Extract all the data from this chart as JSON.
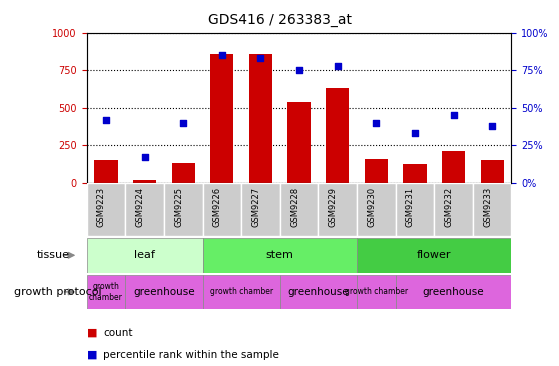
{
  "title": "GDS416 / 263383_at",
  "samples": [
    "GSM9223",
    "GSM9224",
    "GSM9225",
    "GSM9226",
    "GSM9227",
    "GSM9228",
    "GSM9229",
    "GSM9230",
    "GSM9231",
    "GSM9232",
    "GSM9233"
  ],
  "counts": [
    150,
    20,
    130,
    860,
    860,
    540,
    630,
    160,
    125,
    215,
    150
  ],
  "percentiles": [
    42,
    17,
    40,
    85,
    83,
    75,
    78,
    40,
    33,
    45,
    38
  ],
  "bar_color": "#cc0000",
  "dot_color": "#0000cc",
  "ylim_left": [
    0,
    1000
  ],
  "ylim_right": [
    0,
    100
  ],
  "yticks_left": [
    0,
    250,
    500,
    750,
    1000
  ],
  "yticks_right": [
    0,
    25,
    50,
    75,
    100
  ],
  "tissue_spans": [
    {
      "label": "leaf",
      "start": 0,
      "end": 3,
      "color": "#ccffcc"
    },
    {
      "label": "stem",
      "start": 3,
      "end": 7,
      "color": "#66ee66"
    },
    {
      "label": "flower",
      "start": 7,
      "end": 11,
      "color": "#44cc44"
    }
  ],
  "proto_spans": [
    {
      "label": "growth\nchamber",
      "start": 0,
      "end": 1,
      "color": "#dd66dd"
    },
    {
      "label": "greenhouse",
      "start": 1,
      "end": 3,
      "color": "#dd66dd"
    },
    {
      "label": "growth chamber",
      "start": 3,
      "end": 5,
      "color": "#dd66dd"
    },
    {
      "label": "greenhouse",
      "start": 5,
      "end": 7,
      "color": "#dd66dd"
    },
    {
      "label": "growth chamber",
      "start": 7,
      "end": 8,
      "color": "#dd66dd"
    },
    {
      "label": "greenhouse",
      "start": 8,
      "end": 11,
      "color": "#dd66dd"
    }
  ],
  "tissue_label": "tissue",
  "protocol_label": "growth protocol",
  "legend_count_label": "count",
  "legend_pct_label": "percentile rank within the sample",
  "sample_bg_color": "#cccccc",
  "border_color": "#888888"
}
